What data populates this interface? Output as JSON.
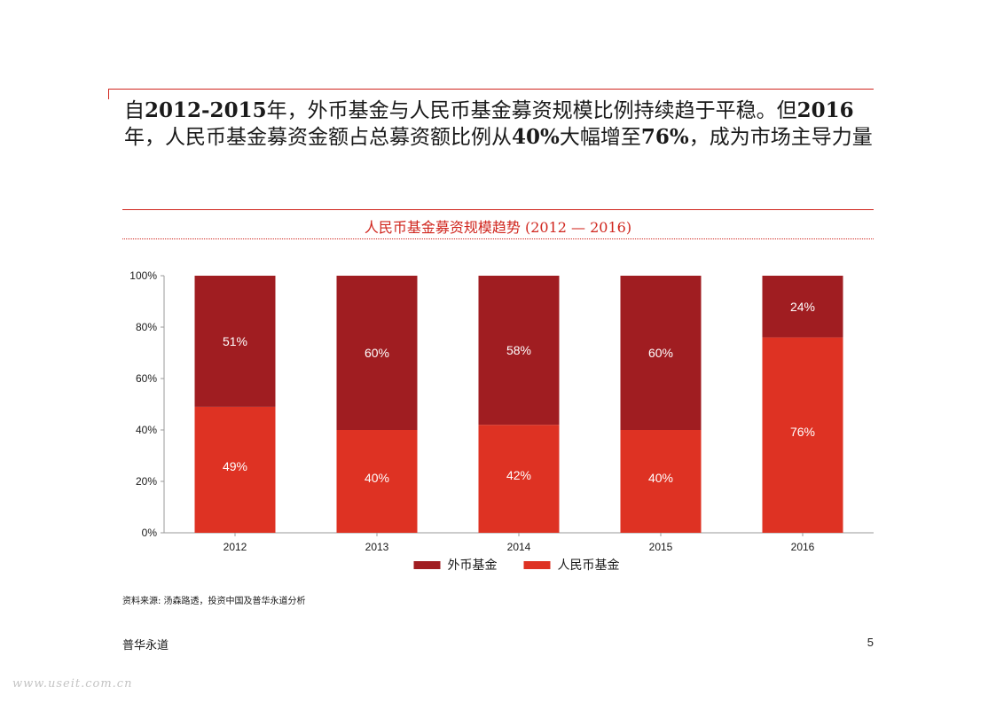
{
  "headline": {
    "text": "自2012-2015年，外币基金与人民币基金募资规模比例持续趋于平稳。但2016年，人民币基金募资金额占总募资额比例从40%大幅增至76%，成为市场主导力量"
  },
  "colors": {
    "accent": "#d0261e",
    "foreign_fund": "#a01d21",
    "rmb_fund": "#de3223",
    "axis": "#9a9a9a",
    "watermark": "#c4c4c4"
  },
  "chart_data": {
    "type": "bar",
    "stacked": true,
    "title": "人民币基金募资规模趋势 (2012 — 2016)",
    "categories": [
      "2012",
      "2013",
      "2014",
      "2015",
      "2016"
    ],
    "series": [
      {
        "name": "人民币基金",
        "values": [
          49,
          40,
          42,
          40,
          76
        ],
        "labels": [
          "49%",
          "40%",
          "42%",
          "40%",
          "76%"
        ]
      },
      {
        "name": "外币基金",
        "values": [
          51,
          60,
          58,
          60,
          24
        ],
        "labels": [
          "51%",
          "60%",
          "58%",
          "60%",
          "24%"
        ]
      }
    ],
    "legend": [
      "外币基金",
      "人民币基金"
    ],
    "legend_position": "bottom",
    "ylim": [
      0,
      100
    ],
    "yticks": [
      "0%",
      "20%",
      "40%",
      "60%",
      "80%",
      "100%"
    ],
    "grid": false,
    "xlabel": "",
    "ylabel": ""
  },
  "source": "资料来源: 汤森路透，投资中国及普华永道分析",
  "footer": {
    "brand": "普华永道",
    "page_number": "5"
  },
  "watermark": "www.useit.com.cn"
}
